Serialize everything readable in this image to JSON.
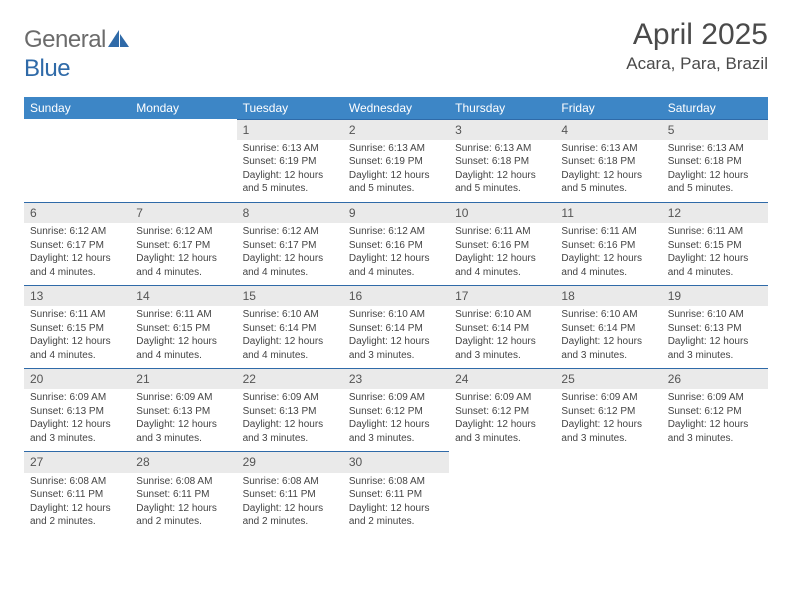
{
  "logo": {
    "word1": "General",
    "word2": "Blue"
  },
  "title": "April 2025",
  "location": "Acara, Para, Brazil",
  "day_headers": [
    "Sunday",
    "Monday",
    "Tuesday",
    "Wednesday",
    "Thursday",
    "Friday",
    "Saturday"
  ],
  "colors": {
    "header_bg": "#3d86c6",
    "header_text": "#ffffff",
    "row_divider": "#2f6aa8",
    "daynum_bg": "#eaeaea",
    "body_text": "#444444",
    "logo_gray": "#6b6b6b",
    "logo_blue": "#2f6aa8"
  },
  "typography": {
    "title_fontsize": 30,
    "location_fontsize": 17,
    "header_fontsize": 12,
    "daynum_fontsize": 12,
    "body_fontsize": 10
  },
  "labels": {
    "sunrise": "Sunrise:",
    "sunset": "Sunset:",
    "daylight": "Daylight:"
  },
  "weeks": [
    [
      {
        "blank": true
      },
      {
        "blank": true
      },
      {
        "num": "1",
        "sunrise": "6:13 AM",
        "sunset": "6:19 PM",
        "daylight": "12 hours and 5 minutes."
      },
      {
        "num": "2",
        "sunrise": "6:13 AM",
        "sunset": "6:19 PM",
        "daylight": "12 hours and 5 minutes."
      },
      {
        "num": "3",
        "sunrise": "6:13 AM",
        "sunset": "6:18 PM",
        "daylight": "12 hours and 5 minutes."
      },
      {
        "num": "4",
        "sunrise": "6:13 AM",
        "sunset": "6:18 PM",
        "daylight": "12 hours and 5 minutes."
      },
      {
        "num": "5",
        "sunrise": "6:13 AM",
        "sunset": "6:18 PM",
        "daylight": "12 hours and 5 minutes."
      }
    ],
    [
      {
        "num": "6",
        "sunrise": "6:12 AM",
        "sunset": "6:17 PM",
        "daylight": "12 hours and 4 minutes."
      },
      {
        "num": "7",
        "sunrise": "6:12 AM",
        "sunset": "6:17 PM",
        "daylight": "12 hours and 4 minutes."
      },
      {
        "num": "8",
        "sunrise": "6:12 AM",
        "sunset": "6:17 PM",
        "daylight": "12 hours and 4 minutes."
      },
      {
        "num": "9",
        "sunrise": "6:12 AM",
        "sunset": "6:16 PM",
        "daylight": "12 hours and 4 minutes."
      },
      {
        "num": "10",
        "sunrise": "6:11 AM",
        "sunset": "6:16 PM",
        "daylight": "12 hours and 4 minutes."
      },
      {
        "num": "11",
        "sunrise": "6:11 AM",
        "sunset": "6:16 PM",
        "daylight": "12 hours and 4 minutes."
      },
      {
        "num": "12",
        "sunrise": "6:11 AM",
        "sunset": "6:15 PM",
        "daylight": "12 hours and 4 minutes."
      }
    ],
    [
      {
        "num": "13",
        "sunrise": "6:11 AM",
        "sunset": "6:15 PM",
        "daylight": "12 hours and 4 minutes."
      },
      {
        "num": "14",
        "sunrise": "6:11 AM",
        "sunset": "6:15 PM",
        "daylight": "12 hours and 4 minutes."
      },
      {
        "num": "15",
        "sunrise": "6:10 AM",
        "sunset": "6:14 PM",
        "daylight": "12 hours and 4 minutes."
      },
      {
        "num": "16",
        "sunrise": "6:10 AM",
        "sunset": "6:14 PM",
        "daylight": "12 hours and 3 minutes."
      },
      {
        "num": "17",
        "sunrise": "6:10 AM",
        "sunset": "6:14 PM",
        "daylight": "12 hours and 3 minutes."
      },
      {
        "num": "18",
        "sunrise": "6:10 AM",
        "sunset": "6:14 PM",
        "daylight": "12 hours and 3 minutes."
      },
      {
        "num": "19",
        "sunrise": "6:10 AM",
        "sunset": "6:13 PM",
        "daylight": "12 hours and 3 minutes."
      }
    ],
    [
      {
        "num": "20",
        "sunrise": "6:09 AM",
        "sunset": "6:13 PM",
        "daylight": "12 hours and 3 minutes."
      },
      {
        "num": "21",
        "sunrise": "6:09 AM",
        "sunset": "6:13 PM",
        "daylight": "12 hours and 3 minutes."
      },
      {
        "num": "22",
        "sunrise": "6:09 AM",
        "sunset": "6:13 PM",
        "daylight": "12 hours and 3 minutes."
      },
      {
        "num": "23",
        "sunrise": "6:09 AM",
        "sunset": "6:12 PM",
        "daylight": "12 hours and 3 minutes."
      },
      {
        "num": "24",
        "sunrise": "6:09 AM",
        "sunset": "6:12 PM",
        "daylight": "12 hours and 3 minutes."
      },
      {
        "num": "25",
        "sunrise": "6:09 AM",
        "sunset": "6:12 PM",
        "daylight": "12 hours and 3 minutes."
      },
      {
        "num": "26",
        "sunrise": "6:09 AM",
        "sunset": "6:12 PM",
        "daylight": "12 hours and 3 minutes."
      }
    ],
    [
      {
        "num": "27",
        "sunrise": "6:08 AM",
        "sunset": "6:11 PM",
        "daylight": "12 hours and 2 minutes."
      },
      {
        "num": "28",
        "sunrise": "6:08 AM",
        "sunset": "6:11 PM",
        "daylight": "12 hours and 2 minutes."
      },
      {
        "num": "29",
        "sunrise": "6:08 AM",
        "sunset": "6:11 PM",
        "daylight": "12 hours and 2 minutes."
      },
      {
        "num": "30",
        "sunrise": "6:08 AM",
        "sunset": "6:11 PM",
        "daylight": "12 hours and 2 minutes."
      },
      {
        "blank": true
      },
      {
        "blank": true
      },
      {
        "blank": true
      }
    ]
  ]
}
